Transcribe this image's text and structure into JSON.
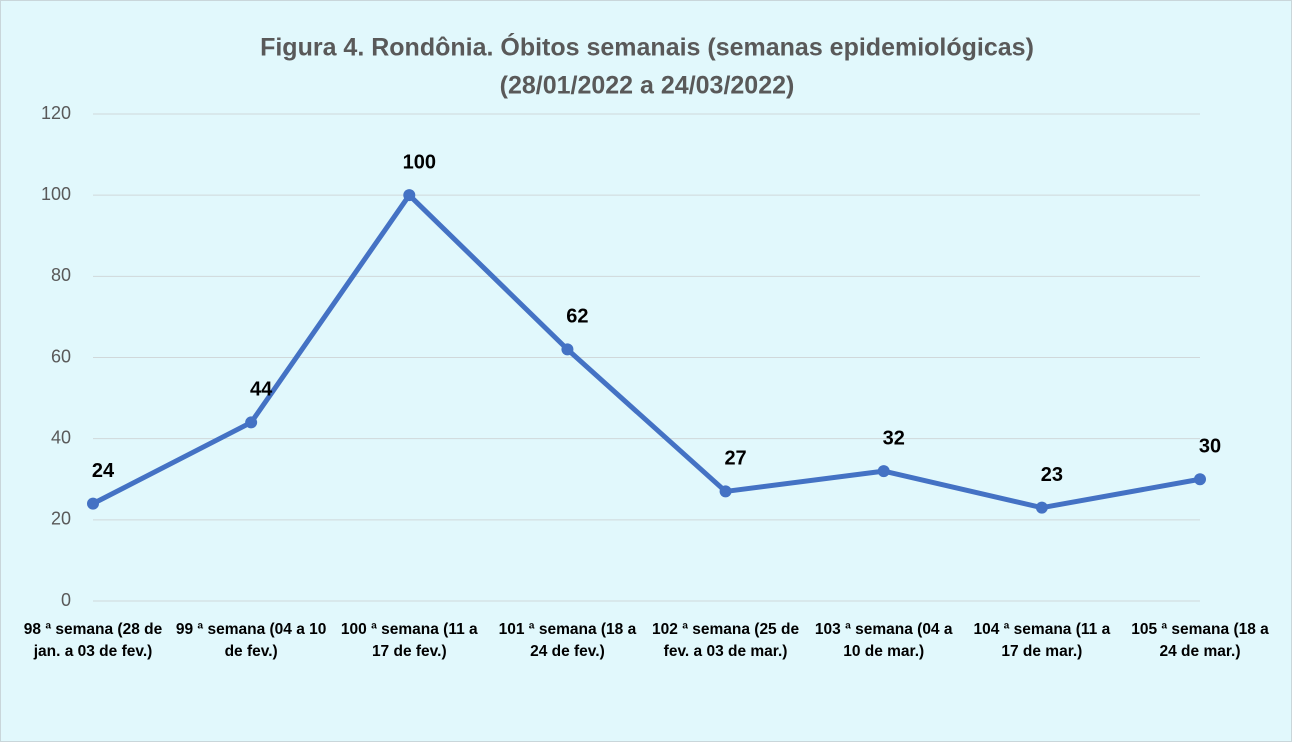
{
  "chart_data": {
    "type": "line",
    "title": "Figura 4.  Rondônia. Óbitos semanais (semanas epidemiológicas)",
    "subtitle": "(28/01/2022 a 24/03/2022)",
    "categories": [
      "98 ª semana (28 de jan. a 03 de fev.)",
      "99 ª semana (04 a 10 de fev.)",
      "100 ª semana (11 a 17 de fev.)",
      "101 ª semana (18 a 24 de fev.)",
      "102 ª semana (25 de fev. a  03 de mar.)",
      "103 ª semana (04 a 10 de mar.)",
      "104 ª semana (11 a 17 de mar.)",
      "105 ª semana (18 a 24 de mar.)"
    ],
    "series": [
      {
        "name": "Óbitos",
        "color": "#4472c4",
        "values": [
          24,
          44,
          100,
          62,
          27,
          32,
          23,
          30
        ]
      }
    ],
    "ylim": [
      0,
      120
    ],
    "yticks": [
      0,
      20,
      40,
      60,
      80,
      100,
      120
    ],
    "grid": true
  }
}
